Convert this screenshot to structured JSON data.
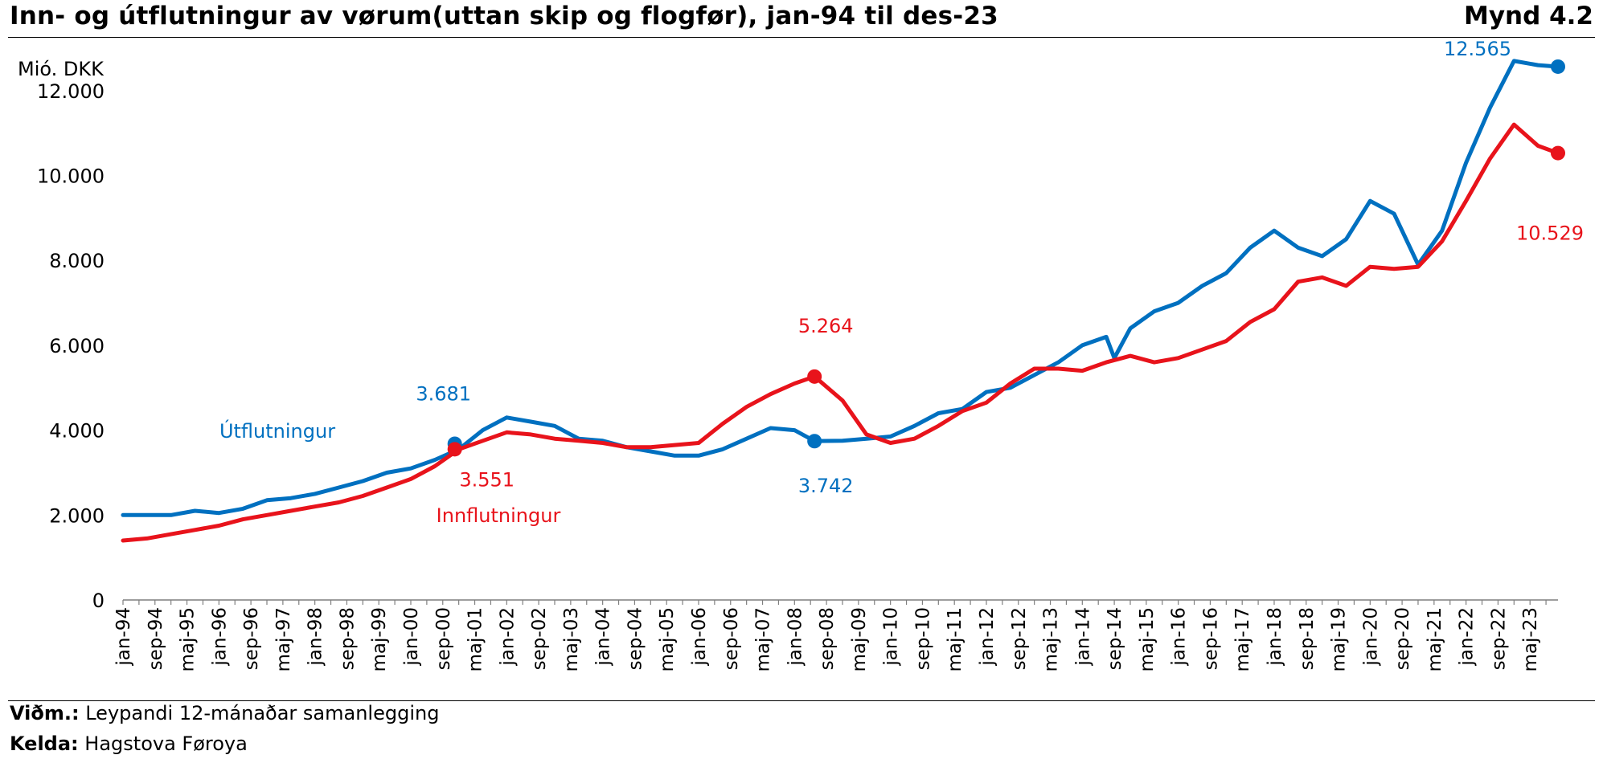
{
  "header": {
    "title": "Inn- og útflutningur av vørum(uttan skip og flogfør), jan-94 til des-23",
    "figure_no": "Mynd 4.2"
  },
  "footer": {
    "note_label": "Viðm.:",
    "note_text": "Leypandi 12-mánaðar samanlegging",
    "source_label": "Kelda:",
    "source_text": "Hagstova Føroya"
  },
  "chart_data": {
    "type": "line",
    "title": "Inn- og útflutningur av vørum(uttan skip og flogfør), jan-94 til des-23",
    "ylabel": "Mió. DKK",
    "ylim": [
      0,
      13000
    ],
    "yticks": [
      0,
      2000,
      4000,
      6000,
      8000,
      10000,
      12000
    ],
    "ytick_labels": [
      "0",
      "2.000",
      "4.000",
      "6.000",
      "8.000",
      "10.000",
      "12.000"
    ],
    "x_ticks": [
      "jan-94",
      "sep-94",
      "maj-95",
      "jan-96",
      "sep-96",
      "maj-97",
      "jan-98",
      "sep-98",
      "maj-99",
      "jan-00",
      "sep-00",
      "maj-01",
      "jan-02",
      "sep-02",
      "maj-03",
      "jan-04",
      "sep-04",
      "maj-05",
      "jan-06",
      "sep-06",
      "maj-07",
      "jan-08",
      "sep-08",
      "maj-09",
      "jan-10",
      "sep-10",
      "maj-11",
      "jan-12",
      "sep-12",
      "maj-13",
      "jan-14",
      "sep-14",
      "maj-15",
      "jan-16",
      "sep-16",
      "maj-17",
      "jan-18",
      "sep-18",
      "maj-19",
      "jan-20",
      "sep-20",
      "maj-21",
      "jan-22",
      "sep-22",
      "maj-23"
    ],
    "x_range": [
      "jan-94",
      "des-23"
    ],
    "grid": false,
    "colors": {
      "Útflutningur": "#0070C0",
      "Innflutningur": "#E8131B"
    },
    "series": [
      {
        "name": "Útflutningur",
        "label": "Útflutningur",
        "points": [
          [
            "jan-94",
            2000
          ],
          [
            "jul-94",
            2000
          ],
          [
            "jan-95",
            2000
          ],
          [
            "jul-95",
            2100
          ],
          [
            "jan-96",
            2050
          ],
          [
            "jul-96",
            2150
          ],
          [
            "jan-97",
            2350
          ],
          [
            "jul-97",
            2400
          ],
          [
            "jan-98",
            2500
          ],
          [
            "jul-98",
            2650
          ],
          [
            "jan-99",
            2800
          ],
          [
            "jul-99",
            3000
          ],
          [
            "jan-00",
            3100
          ],
          [
            "jul-00",
            3300
          ],
          [
            "jan-01",
            3550
          ],
          [
            "jul-01",
            4000
          ],
          [
            "jan-02",
            4300
          ],
          [
            "jul-02",
            4200
          ],
          [
            "jan-03",
            4100
          ],
          [
            "jul-03",
            3800
          ],
          [
            "jan-04",
            3750
          ],
          [
            "jul-04",
            3600
          ],
          [
            "jan-05",
            3500
          ],
          [
            "jul-05",
            3400
          ],
          [
            "jan-06",
            3400
          ],
          [
            "jul-06",
            3550
          ],
          [
            "jan-07",
            3800
          ],
          [
            "jul-07",
            4050
          ],
          [
            "jan-08",
            4000
          ],
          [
            "jun-08",
            3742
          ],
          [
            "jan-09",
            3750
          ],
          [
            "jul-09",
            3800
          ],
          [
            "jan-10",
            3850
          ],
          [
            "jul-10",
            4100
          ],
          [
            "jan-11",
            4400
          ],
          [
            "jul-11",
            4500
          ],
          [
            "jan-12",
            4900
          ],
          [
            "jul-12",
            5000
          ],
          [
            "jan-13",
            5300
          ],
          [
            "jul-13",
            5600
          ],
          [
            "jan-14",
            6000
          ],
          [
            "jul-14",
            6200
          ],
          [
            "sep-14",
            5700
          ],
          [
            "jan-15",
            6400
          ],
          [
            "jul-15",
            6800
          ],
          [
            "jan-16",
            7000
          ],
          [
            "jul-16",
            7400
          ],
          [
            "jan-17",
            7700
          ],
          [
            "jul-17",
            8300
          ],
          [
            "jan-18",
            8700
          ],
          [
            "jul-18",
            8300
          ],
          [
            "jan-19",
            8100
          ],
          [
            "jul-19",
            8500
          ],
          [
            "jan-20",
            9400
          ],
          [
            "jul-20",
            9100
          ],
          [
            "jan-21",
            7900
          ],
          [
            "jul-21",
            8700
          ],
          [
            "jan-22",
            10300
          ],
          [
            "jul-22",
            11600
          ],
          [
            "jan-23",
            12700
          ],
          [
            "jul-23",
            12600
          ],
          [
            "des-23",
            12565
          ]
        ],
        "annotations": [
          {
            "date": "dec-00",
            "value": 3681,
            "label": "3.681"
          },
          {
            "date": "jun-08",
            "value": 3742,
            "label": "3.742"
          },
          {
            "date": "des-23",
            "value": 12565,
            "label": "12.565"
          }
        ]
      },
      {
        "name": "Innflutningur",
        "label": "Innflutningur",
        "points": [
          [
            "jan-94",
            1400
          ],
          [
            "jul-94",
            1450
          ],
          [
            "jan-95",
            1550
          ],
          [
            "jul-95",
            1650
          ],
          [
            "jan-96",
            1750
          ],
          [
            "jul-96",
            1900
          ],
          [
            "jan-97",
            2000
          ],
          [
            "jul-97",
            2100
          ],
          [
            "jan-98",
            2200
          ],
          [
            "jul-98",
            2300
          ],
          [
            "jan-99",
            2450
          ],
          [
            "jul-99",
            2650
          ],
          [
            "jan-00",
            2850
          ],
          [
            "jul-00",
            3150
          ],
          [
            "jan-01",
            3550
          ],
          [
            "jul-01",
            3750
          ],
          [
            "jan-02",
            3950
          ],
          [
            "jul-02",
            3900
          ],
          [
            "jan-03",
            3800
          ],
          [
            "jul-03",
            3750
          ],
          [
            "jan-04",
            3700
          ],
          [
            "jul-04",
            3600
          ],
          [
            "jan-05",
            3600
          ],
          [
            "jul-05",
            3650
          ],
          [
            "jan-06",
            3700
          ],
          [
            "jul-06",
            4150
          ],
          [
            "jan-07",
            4550
          ],
          [
            "jul-07",
            4850
          ],
          [
            "jan-08",
            5100
          ],
          [
            "jun-08",
            5264
          ],
          [
            "jan-09",
            4700
          ],
          [
            "jul-09",
            3900
          ],
          [
            "jan-10",
            3700
          ],
          [
            "jul-10",
            3800
          ],
          [
            "jan-11",
            4100
          ],
          [
            "jul-11",
            4450
          ],
          [
            "jan-12",
            4650
          ],
          [
            "jul-12",
            5100
          ],
          [
            "jan-13",
            5450
          ],
          [
            "jul-13",
            5450
          ],
          [
            "jan-14",
            5400
          ],
          [
            "jul-14",
            5600
          ],
          [
            "jan-15",
            5750
          ],
          [
            "jul-15",
            5600
          ],
          [
            "jan-16",
            5700
          ],
          [
            "jul-16",
            5900
          ],
          [
            "jan-17",
            6100
          ],
          [
            "jul-17",
            6550
          ],
          [
            "jan-18",
            6850
          ],
          [
            "jul-18",
            7500
          ],
          [
            "jan-19",
            7600
          ],
          [
            "jul-19",
            7400
          ],
          [
            "jan-20",
            7850
          ],
          [
            "jul-20",
            7800
          ],
          [
            "jan-21",
            7850
          ],
          [
            "jul-21",
            8450
          ],
          [
            "jan-22",
            9400
          ],
          [
            "jul-22",
            10400
          ],
          [
            "jan-23",
            11200
          ],
          [
            "jul-23",
            10700
          ],
          [
            "des-23",
            10529
          ]
        ],
        "annotations": [
          {
            "date": "dec-00",
            "value": 3551,
            "label": "3.551"
          },
          {
            "date": "jun-08",
            "value": 5264,
            "label": "5.264"
          },
          {
            "date": "des-23",
            "value": 10529,
            "label": "10.529"
          }
        ]
      }
    ]
  }
}
